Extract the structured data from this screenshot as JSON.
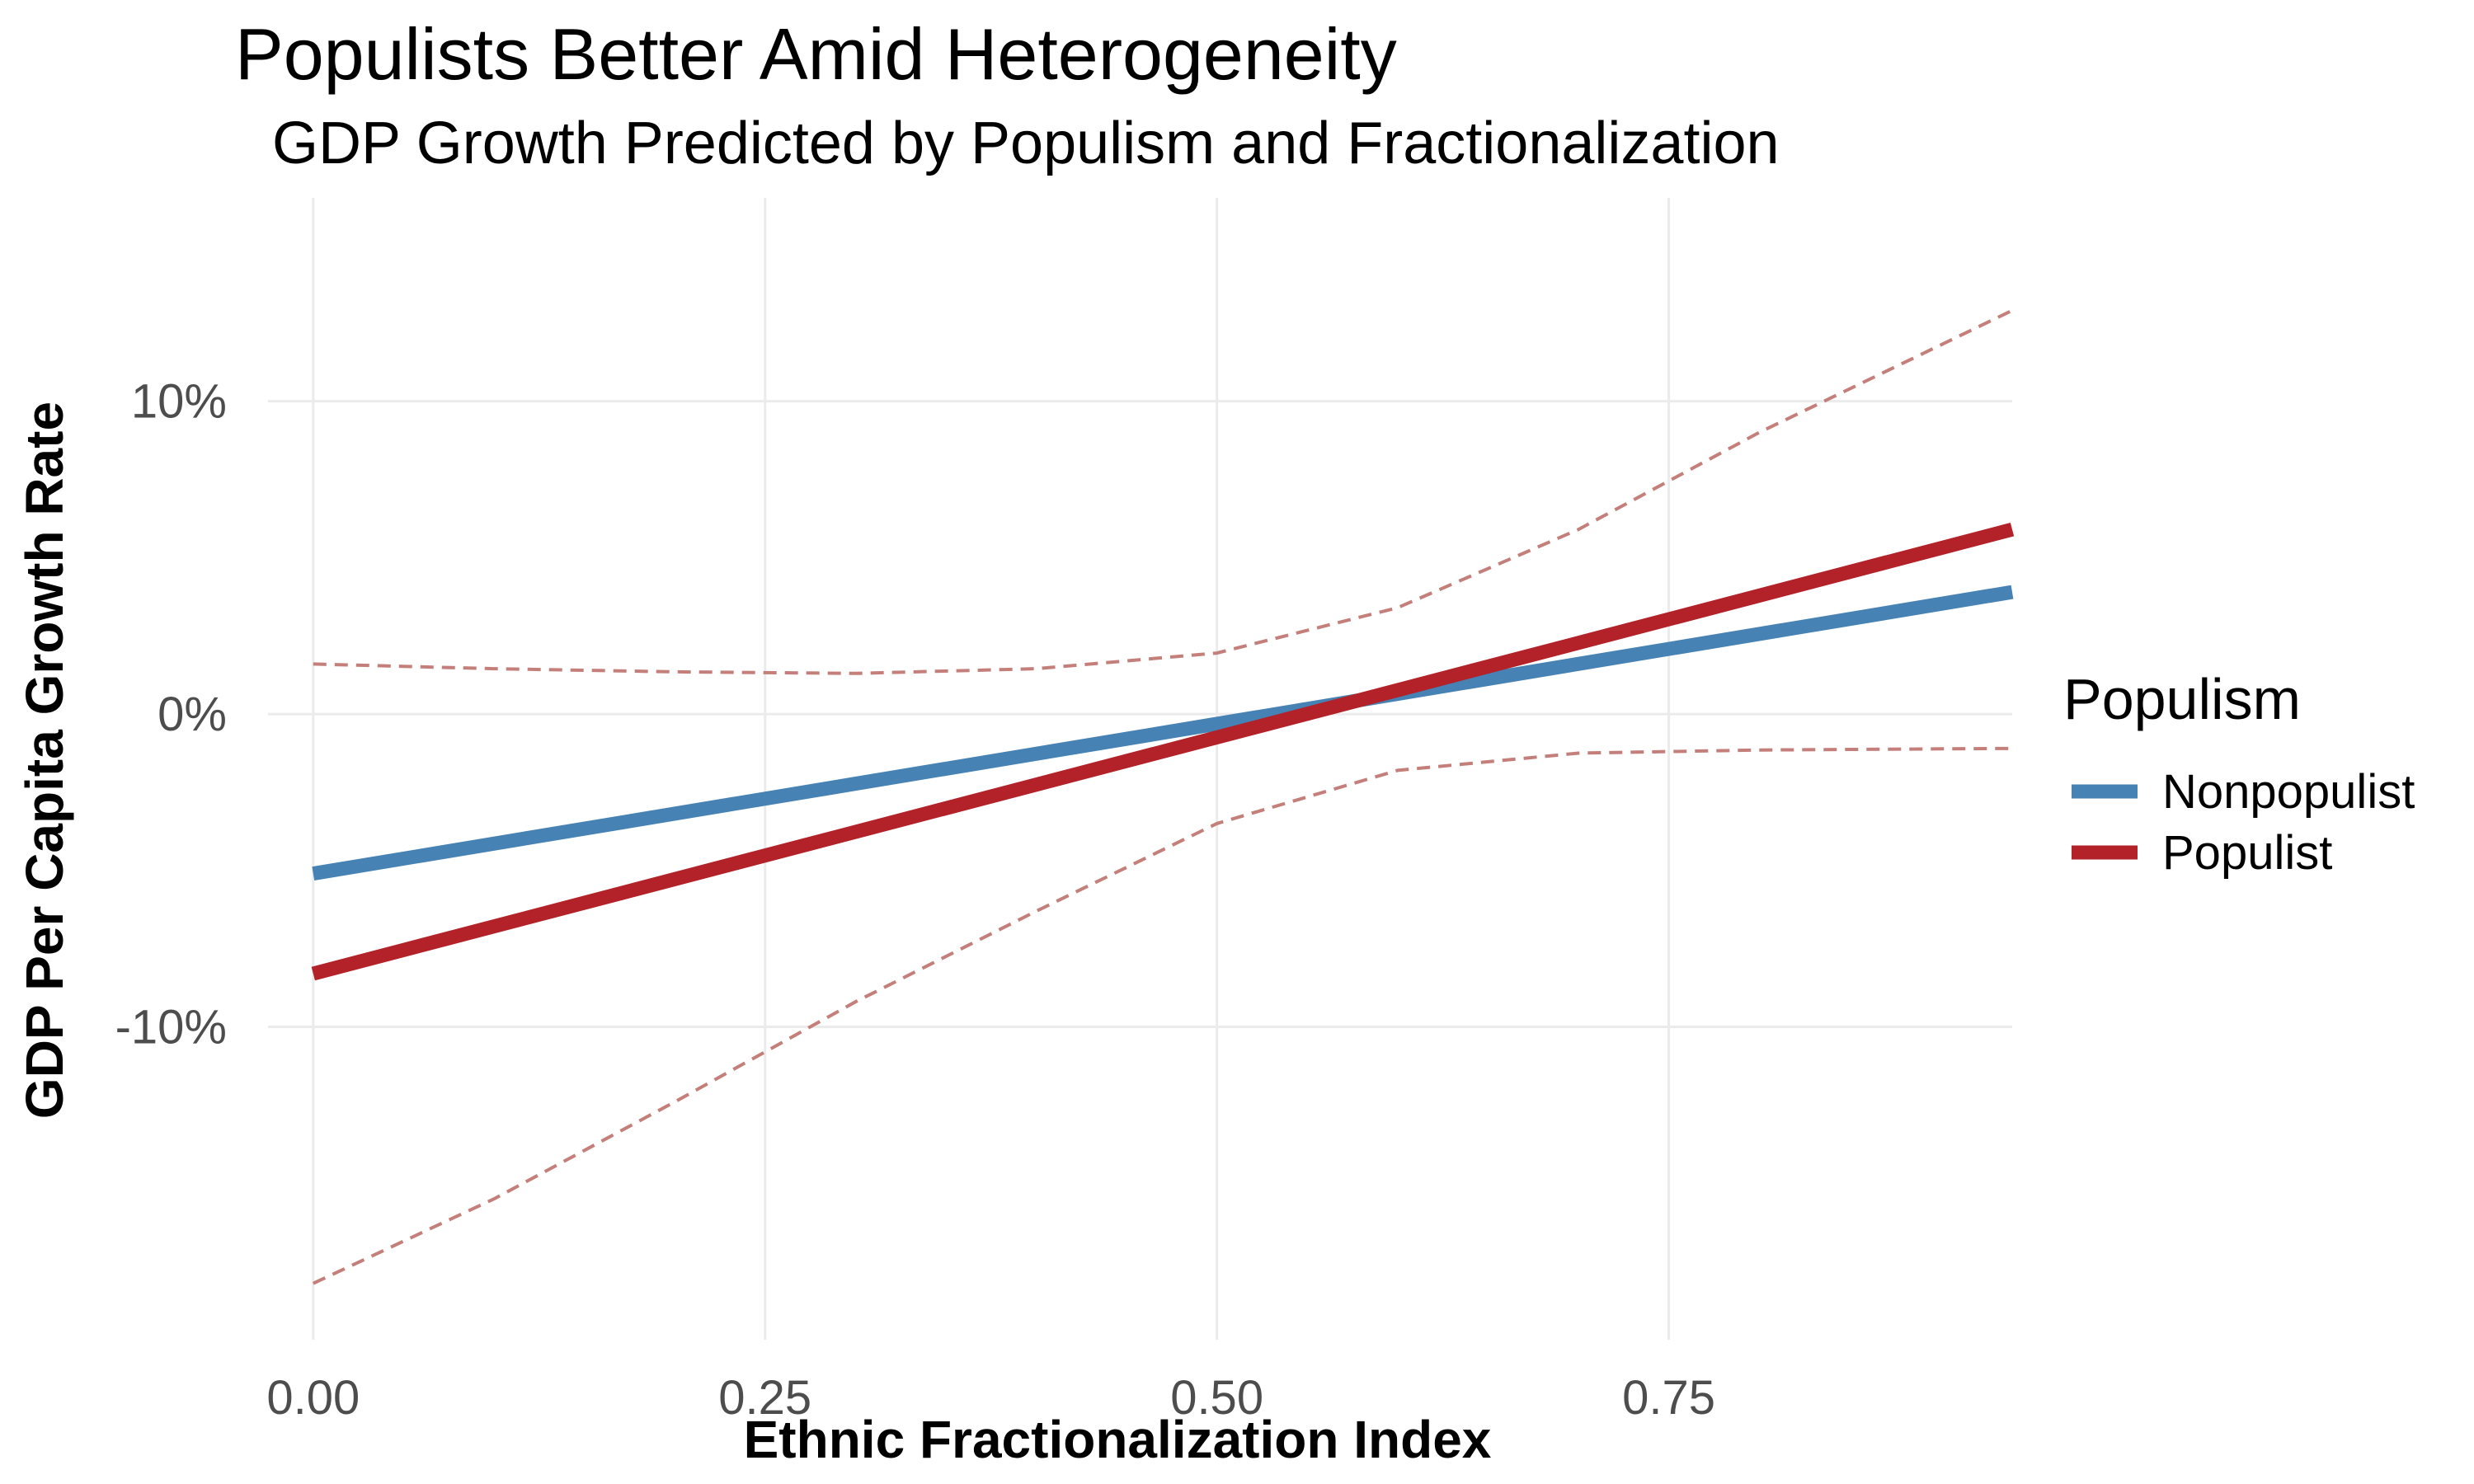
{
  "chart_data": {
    "type": "line",
    "title": "Populists Better Amid Heterogeneity",
    "subtitle": "GDP Growth Predicted by Populism and Fractionalization",
    "xlabel": "Ethnic Fractionalization Index",
    "ylabel": "GDP Per Capita Growth Rate",
    "xlim": [
      -0.025,
      0.94
    ],
    "ylim": [
      -20,
      16.5
    ],
    "x_ticks": [
      0.0,
      0.25,
      0.5,
      0.75
    ],
    "x_tick_labels": [
      "0.00",
      "0.25",
      "0.50",
      "0.75"
    ],
    "y_ticks": [
      -10,
      0,
      10
    ],
    "y_tick_labels": [
      "-10%",
      "0%",
      "10%"
    ],
    "grid": true,
    "legend": {
      "title": "Populism",
      "position": "right"
    },
    "series": [
      {
        "name": "Nonpopulist",
        "color": "#4682b4",
        "x": [
          0.0,
          0.94
        ],
        "y": [
          -5.1,
          3.9
        ]
      },
      {
        "name": "Populist",
        "color": "#b22228",
        "x": [
          0.0,
          0.94
        ],
        "y": [
          -8.3,
          5.9
        ]
      }
    ],
    "confidence_band": {
      "series": "Populist",
      "color": "#c47f7a",
      "style": "dashed",
      "upper": {
        "x": [
          0.0,
          0.1,
          0.2,
          0.3,
          0.4,
          0.5,
          0.6,
          0.7,
          0.8,
          0.94
        ],
        "y": [
          1.6,
          1.45,
          1.35,
          1.3,
          1.45,
          1.95,
          3.4,
          5.9,
          9.0,
          12.9
        ]
      },
      "lower": {
        "x": [
          0.0,
          0.1,
          0.2,
          0.3,
          0.4,
          0.5,
          0.6,
          0.7,
          0.8,
          0.94
        ],
        "y": [
          -18.2,
          -15.5,
          -12.4,
          -9.2,
          -6.3,
          -3.5,
          -1.8,
          -1.25,
          -1.15,
          -1.1
        ]
      }
    }
  }
}
